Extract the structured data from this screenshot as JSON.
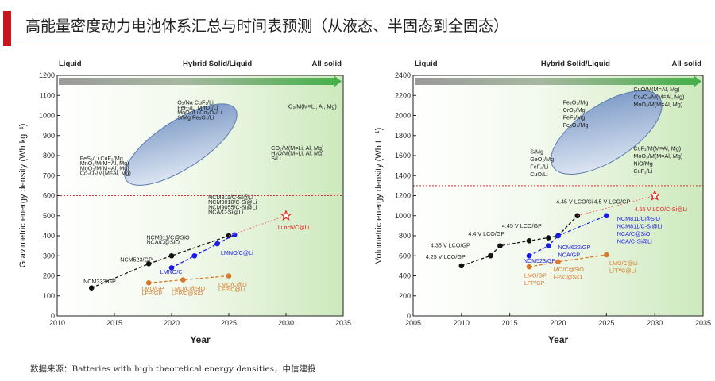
{
  "page": {
    "title": "高能量密度动力电池体系汇总与时间表预测（从液态、半固态到全固态）",
    "source": "数据来源：Batteries with high theoretical energy densities，中信建投",
    "accent_color": "#c8161e"
  },
  "chart_data": [
    {
      "type": "scatter",
      "xlabel": "Year",
      "ylabel": "Gravimetric energy density (Wh kg⁻¹)",
      "xlim": [
        2010,
        2035
      ],
      "ylim": [
        0,
        1200
      ],
      "xticks": [
        2010,
        2015,
        2020,
        2025,
        2030,
        2035
      ],
      "yticks": [
        0,
        100,
        200,
        300,
        400,
        500,
        600,
        700,
        800,
        900,
        1000,
        1100,
        1200
      ],
      "phases": [
        "Liquid",
        "Hybrid Solid/Liquid",
        "All-solid"
      ],
      "threshold": 600,
      "series": [
        {
          "color": "#111111",
          "values": [
            [
              2013,
              140
            ],
            [
              2018,
              260
            ],
            [
              2020,
              300
            ],
            [
              2025,
              400
            ]
          ]
        },
        {
          "color": "#1a1ae6",
          "values": [
            [
              2020,
              240
            ],
            [
              2022,
              300
            ],
            [
              2024,
              360
            ],
            [
              2025.5,
              405
            ]
          ]
        },
        {
          "color": "#d97a2b",
          "values": [
            [
              2018,
              165
            ],
            [
              2021,
              180
            ],
            [
              2025,
              200
            ]
          ]
        },
        {
          "color": "#e87070",
          "values": [
            [
              2025,
              400
            ],
            [
              2030,
              500
            ]
          ]
        }
      ],
      "star": {
        "x": 2030,
        "y": 500,
        "color": "#e02020"
      },
      "annotations": [
        {
          "text": "NCM333/GP",
          "x": 2012.3,
          "y": 162,
          "color": "#222222"
        },
        {
          "text": "NCM523/GP",
          "x": 2015.5,
          "y": 272,
          "color": "#222222"
        },
        {
          "text": "NCM811/C@SiO",
          "x": 2017.8,
          "y": 383,
          "color": "#222222"
        },
        {
          "text": "NCA/C@SiO",
          "x": 2017.8,
          "y": 358,
          "color": "#222222"
        },
        {
          "text": "LMNO/C",
          "x": 2019,
          "y": 210,
          "color": "#1a1ae6"
        },
        {
          "text": "LMNO/C@Li",
          "x": 2024.3,
          "y": 305,
          "color": "#1a1ae6"
        },
        {
          "text": "NCM811/C-Si@Li",
          "x": 2023.2,
          "y": 583,
          "color": "#222222"
        },
        {
          "text": "NCM9010/C-Si@Li",
          "x": 2023.2,
          "y": 558,
          "color": "#222222"
        },
        {
          "text": "NCM9055/C-Si@Li",
          "x": 2023.2,
          "y": 533,
          "color": "#222222"
        },
        {
          "text": "NCA/C-Si@Li",
          "x": 2023.2,
          "y": 508,
          "color": "#222222"
        },
        {
          "text": "Li rich/C@Li",
          "x": 2029.3,
          "y": 432,
          "color": "#e02020"
        },
        {
          "text": "LMO/GP",
          "x": 2017.4,
          "y": 127,
          "color": "#d97a2b"
        },
        {
          "text": "LFP/GP",
          "x": 2017.4,
          "y": 102,
          "color": "#d97a2b"
        },
        {
          "text": "LMO/C@SiO",
          "x": 2020,
          "y": 127,
          "color": "#d97a2b"
        },
        {
          "text": "LFP/C@SiO",
          "x": 2020,
          "y": 102,
          "color": "#d97a2b"
        },
        {
          "text": "LMO/C@Li",
          "x": 2024.1,
          "y": 147,
          "color": "#d97a2b"
        },
        {
          "text": "LFP/C@Li",
          "x": 2024.1,
          "y": 122,
          "color": "#d97a2b"
        },
        {
          "text": "O₂/Na   CuF₂/Li",
          "x": 2020.5,
          "y": 1055,
          "color": "#222222"
        },
        {
          "text": "FeF₃/Li   MnO₂/Li",
          "x": 2020.5,
          "y": 1030,
          "color": "#222222"
        },
        {
          "text": "MoO₃/Li   Co₃O₄/Li",
          "x": 2020.5,
          "y": 1005,
          "color": "#222222"
        },
        {
          "text": "S/Mg   Fe₃O₄/Li",
          "x": 2020.5,
          "y": 980,
          "color": "#222222"
        },
        {
          "text": "O₂/M(M=Li, Al, Mg)",
          "x": 2030.2,
          "y": 1035,
          "color": "#222222"
        },
        {
          "text": "FeS₂/Li   CuF₂/Mg",
          "x": 2012,
          "y": 777,
          "color": "#222222"
        },
        {
          "text": "MnO₂/M(M=Al, Mg)",
          "x": 2012,
          "y": 752,
          "color": "#222222"
        },
        {
          "text": "MoO₃/M(M=Al, Mg)",
          "x": 2012,
          "y": 727,
          "color": "#222222"
        },
        {
          "text": "Co₃O₄/M(M=Al, Mg)",
          "x": 2012,
          "y": 702,
          "color": "#222222"
        },
        {
          "text": "CO₂/M(M=Li, Al, Mg)",
          "x": 2028.7,
          "y": 827,
          "color": "#222222"
        },
        {
          "text": "H₂O/M(M=Li, Al, Mg)",
          "x": 2028.7,
          "y": 802,
          "color": "#222222"
        },
        {
          "text": "S/Li",
          "x": 2028.7,
          "y": 777,
          "color": "#222222"
        }
      ]
    },
    {
      "type": "scatter",
      "xlabel": "Year",
      "ylabel": "Volumetric energy density (Wh L⁻¹)",
      "xlim": [
        2005,
        2035
      ],
      "ylim": [
        0,
        2400
      ],
      "xticks": [
        2005,
        2010,
        2015,
        2020,
        2025,
        2030,
        2035
      ],
      "yticks": [
        0,
        200,
        400,
        600,
        800,
        1000,
        1200,
        1400,
        1600,
        1800,
        2000,
        2200,
        2400
      ],
      "phases": [
        "Liquid",
        "Hybrid Solid/Liquid",
        "All-solid"
      ],
      "threshold": 1300,
      "series": [
        {
          "color": "#111111",
          "values": [
            [
              2010,
              500
            ],
            [
              2013,
              600
            ],
            [
              2014,
              700
            ],
            [
              2017,
              750
            ],
            [
              2019,
              780
            ],
            [
              2020,
              800
            ],
            [
              2022,
              1000
            ]
          ]
        },
        {
          "color": "#1a1ae6",
          "values": [
            [
              2017,
              600
            ],
            [
              2019,
              700
            ],
            [
              2020,
              800
            ],
            [
              2025,
              1000
            ]
          ]
        },
        {
          "color": "#d97a2b",
          "values": [
            [
              2017,
              490
            ],
            [
              2020,
              540
            ],
            [
              2025,
              610
            ]
          ]
        },
        {
          "color": "#e87070",
          "values": [
            [
              2022,
              1000
            ],
            [
              2030,
              1200
            ]
          ]
        }
      ],
      "star": {
        "x": 2030,
        "y": 1200,
        "color": "#e02020"
      },
      "annotations": [
        {
          "text": "4.25 V LCO/GP",
          "x": 2006.3,
          "y": 570,
          "color": "#222222"
        },
        {
          "text": "4.35 V LCO/GP",
          "x": 2006.8,
          "y": 685,
          "color": "#222222"
        },
        {
          "text": "4.4 V LCO/GP",
          "x": 2010.7,
          "y": 800,
          "color": "#222222"
        },
        {
          "text": "4.45 V LCO/GP",
          "x": 2014.2,
          "y": 880,
          "color": "#222222"
        },
        {
          "text": "4.45 V LCO/Si",
          "x": 2019.8,
          "y": 1120,
          "color": "#222222"
        },
        {
          "text": "4.5 V LCO/GP",
          "x": 2023.7,
          "y": 1120,
          "color": "#222222"
        },
        {
          "text": "4.55 V LCO/C-Si@Li",
          "x": 2027.9,
          "y": 1045,
          "color": "#e02020"
        },
        {
          "text": "NCM523/GP",
          "x": 2016.4,
          "y": 530,
          "color": "#1a1ae6"
        },
        {
          "text": "NCM622/GP",
          "x": 2020,
          "y": 665,
          "color": "#1a1ae6"
        },
        {
          "text": "NCA/GP",
          "x": 2020,
          "y": 590,
          "color": "#1a1ae6"
        },
        {
          "text": "NCM811/C@SiO",
          "x": 2026.1,
          "y": 950,
          "color": "#1a1ae6"
        },
        {
          "text": "NCM811/C-Si@Li",
          "x": 2026.1,
          "y": 875,
          "color": "#1a1ae6"
        },
        {
          "text": "NCA/C@SiO",
          "x": 2026.1,
          "y": 800,
          "color": "#1a1ae6"
        },
        {
          "text": "NCA/C-Si@Li",
          "x": 2026.1,
          "y": 725,
          "color": "#1a1ae6"
        },
        {
          "text": "LMO/GP",
          "x": 2016.5,
          "y": 385,
          "color": "#d97a2b"
        },
        {
          "text": "LFP/GP",
          "x": 2016.5,
          "y": 310,
          "color": "#d97a2b"
        },
        {
          "text": "LMO/C@SiO",
          "x": 2019.2,
          "y": 445,
          "color": "#d97a2b"
        },
        {
          "text": "LFP/C@SiO",
          "x": 2019.2,
          "y": 370,
          "color": "#d97a2b"
        },
        {
          "text": "LMO/C@Li",
          "x": 2025.3,
          "y": 505,
          "color": "#d97a2b"
        },
        {
          "text": "LFP/C@Li",
          "x": 2025.3,
          "y": 430,
          "color": "#d97a2b"
        },
        {
          "text": "S/Mg",
          "x": 2017.1,
          "y": 1620,
          "color": "#222222"
        },
        {
          "text": "GeO₂/Mg",
          "x": 2017.1,
          "y": 1545,
          "color": "#222222"
        },
        {
          "text": "FeF₃/Li",
          "x": 2017.1,
          "y": 1470,
          "color": "#222222"
        },
        {
          "text": "CuO/Li",
          "x": 2017.1,
          "y": 1395,
          "color": "#222222"
        },
        {
          "text": "Fe₂O₃/Mg",
          "x": 2020.5,
          "y": 2110,
          "color": "#222222"
        },
        {
          "text": "CrO₃/Mg",
          "x": 2020.5,
          "y": 2035,
          "color": "#222222"
        },
        {
          "text": "FeF₃/Mg",
          "x": 2020.5,
          "y": 1960,
          "color": "#222222"
        },
        {
          "text": "Fe₃O₄/Mg",
          "x": 2020.5,
          "y": 1885,
          "color": "#222222"
        },
        {
          "text": "CuO/M(M=Al, Mg)",
          "x": 2027.8,
          "y": 2240,
          "color": "#222222"
        },
        {
          "text": "Co₃O₄/M(M=Al, Mg)",
          "x": 2027.8,
          "y": 2165,
          "color": "#222222"
        },
        {
          "text": "MnO₂/M(M=Al, Mg)",
          "x": 2027.8,
          "y": 2090,
          "color": "#222222"
        },
        {
          "text": "CuF₂/M(M=Al, Mg)",
          "x": 2027.8,
          "y": 1650,
          "color": "#222222"
        },
        {
          "text": "MoO₃/M(M=Al, Mg)",
          "x": 2027.8,
          "y": 1575,
          "color": "#222222"
        },
        {
          "text": "NiO/Mg",
          "x": 2027.8,
          "y": 1500,
          "color": "#222222"
        },
        {
          "text": "CuF₂/Li",
          "x": 2027.8,
          "y": 1425,
          "color": "#222222"
        }
      ]
    }
  ]
}
